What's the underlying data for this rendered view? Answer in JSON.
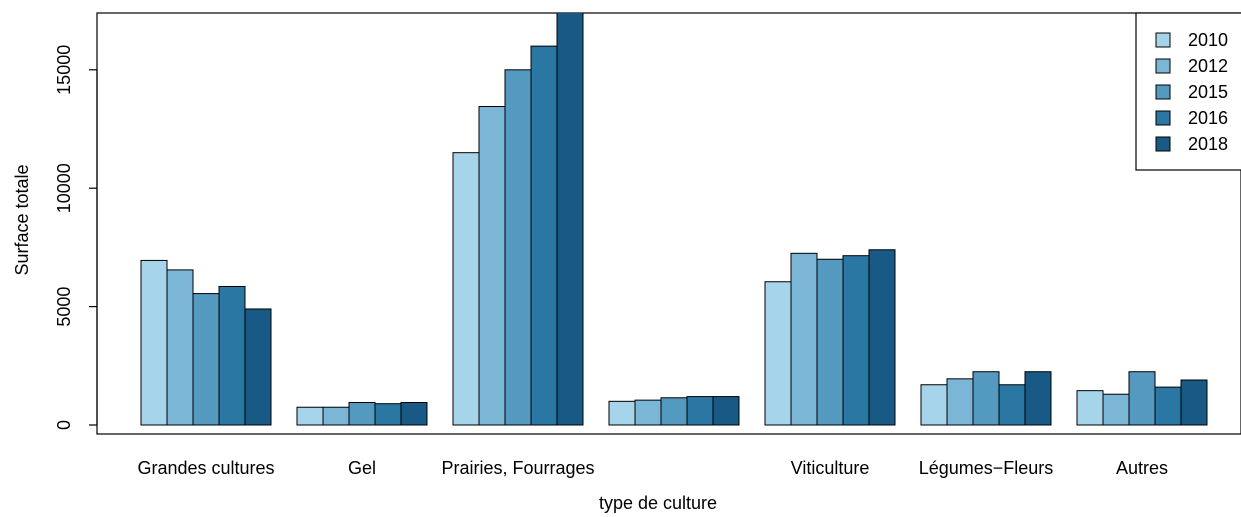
{
  "chart_data": {
    "type": "bar",
    "title": "",
    "xlabel": "type de culture",
    "ylabel": "Surface totale",
    "categories": [
      "Grandes cultures",
      "Gel",
      "Prairies, Fourrages",
      "",
      "Viticulture",
      "Légumes−Fleurs",
      "Autres"
    ],
    "series": [
      {
        "name": "2010",
        "color": "#a6d4ea",
        "values": [
          6950,
          750,
          11500,
          1000,
          6050,
          1700,
          1450
        ]
      },
      {
        "name": "2012",
        "color": "#7cb6d6",
        "values": [
          6550,
          750,
          13450,
          1050,
          7250,
          1950,
          1300
        ]
      },
      {
        "name": "2015",
        "color": "#5499c0",
        "values": [
          5550,
          950,
          15000,
          1150,
          7000,
          2250,
          2250
        ]
      },
      {
        "name": "2016",
        "color": "#2b77a4",
        "values": [
          5850,
          900,
          16000,
          1200,
          7150,
          1700,
          1600
        ]
      },
      {
        "name": "2018",
        "color": "#185a85",
        "values": [
          4900,
          950,
          17500,
          1200,
          7400,
          2250,
          1900
        ]
      }
    ],
    "yticks": [
      0,
      5000,
      10000,
      15000
    ],
    "ylim": [
      0,
      17500
    ],
    "legend_position": "top-right",
    "grid": false
  }
}
